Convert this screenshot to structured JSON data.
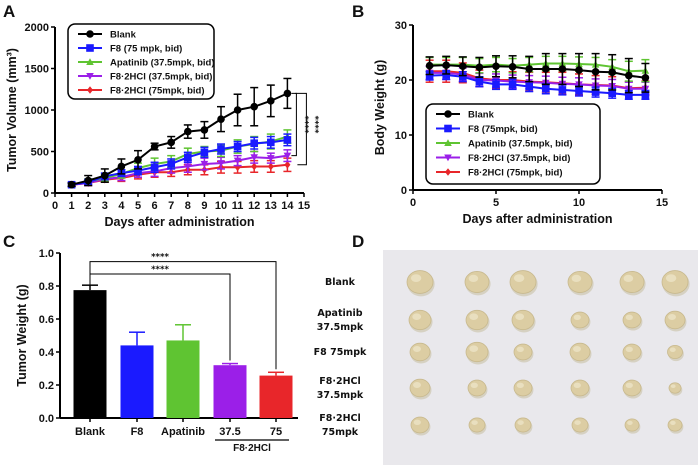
{
  "panels": {
    "a": "A",
    "b": "B",
    "c": "C",
    "d": "D"
  },
  "colors": {
    "blank": "#000000",
    "f8": "#1a1aff",
    "apatinib": "#5fc432",
    "f8_2hcl_37_5": "#9b1fe8",
    "f8_2hcl_75": "#e8262a"
  },
  "chart_data": [
    {
      "type": "line",
      "title": "A",
      "xlabel": "Days after administration",
      "ylabel": "Tumor Volume (mm³)",
      "xlim": [
        0,
        15
      ],
      "ylim": [
        0,
        2000
      ],
      "xticks": [
        0,
        1,
        2,
        3,
        4,
        5,
        6,
        7,
        8,
        9,
        10,
        11,
        12,
        13,
        14,
        15
      ],
      "yticks": [
        0,
        500,
        1000,
        1500,
        2000
      ],
      "x": [
        1,
        2,
        3,
        4,
        5,
        6,
        7,
        8,
        9,
        10,
        11,
        12,
        13,
        14
      ],
      "legend_position": "top-left",
      "significance": [
        "****",
        "****"
      ],
      "series": [
        {
          "name": "Blank",
          "key": "blank",
          "marker": "circle",
          "values": [
            100,
            150,
            210,
            320,
            400,
            560,
            610,
            740,
            760,
            890,
            1000,
            1040,
            1110,
            1200
          ],
          "errors": [
            20,
            60,
            80,
            90,
            110,
            40,
            70,
            80,
            100,
            150,
            190,
            230,
            190,
            180
          ]
        },
        {
          "name": "F8 (75 mpk, bid)",
          "key": "f8",
          "marker": "square",
          "values": [
            100,
            130,
            200,
            240,
            270,
            310,
            350,
            430,
            490,
            530,
            560,
            600,
            610,
            640
          ],
          "errors": [
            20,
            30,
            40,
            40,
            50,
            60,
            60,
            60,
            60,
            60,
            60,
            70,
            70,
            70
          ]
        },
        {
          "name": "Apatinib (37.5mpk, bid)",
          "key": "apatinib",
          "marker": "triangle-up",
          "values": [
            100,
            140,
            180,
            230,
            300,
            350,
            380,
            470,
            500,
            510,
            560,
            590,
            620,
            680
          ],
          "errors": [
            20,
            30,
            40,
            50,
            60,
            70,
            70,
            70,
            60,
            70,
            80,
            90,
            90,
            80
          ]
        },
        {
          "name": "F8·2HCl (37.5mpk, bid)",
          "key": "f8_2hcl_37_5",
          "marker": "triangle-down",
          "values": [
            100,
            120,
            170,
            190,
            240,
            260,
            300,
            320,
            350,
            360,
            390,
            430,
            420,
            450
          ],
          "errors": [
            20,
            30,
            30,
            40,
            50,
            60,
            60,
            70,
            70,
            70,
            60,
            70,
            60,
            70
          ]
        },
        {
          "name": "F8·2HCl (75mpk, bid)",
          "key": "f8_2hcl_75",
          "marker": "diamond",
          "values": [
            100,
            120,
            160,
            180,
            220,
            250,
            250,
            280,
            280,
            310,
            310,
            320,
            320,
            340
          ],
          "errors": [
            20,
            30,
            30,
            40,
            50,
            60,
            50,
            60,
            60,
            70,
            70,
            70,
            70,
            80
          ]
        }
      ]
    },
    {
      "type": "line",
      "title": "B",
      "xlabel": "Days after administration",
      "ylabel": "Body Weight (g)",
      "xlim": [
        0,
        15
      ],
      "ylim": [
        0,
        30
      ],
      "xticks": [
        0,
        5,
        10,
        15
      ],
      "yticks": [
        0,
        10,
        20,
        30
      ],
      "x": [
        1,
        2,
        3,
        4,
        5,
        6,
        7,
        8,
        9,
        10,
        11,
        12,
        13,
        14
      ],
      "legend_position": "bottom-left",
      "series": [
        {
          "name": "Blank",
          "key": "blank",
          "marker": "circle",
          "values": [
            22.6,
            22.7,
            22.5,
            22.3,
            22.5,
            22.4,
            22.0,
            22.0,
            22.0,
            21.8,
            21.5,
            21.4,
            20.8,
            20.4
          ],
          "errors": [
            1.6,
            1.6,
            1.7,
            1.8,
            1.9,
            2.0,
            2.3,
            2.8,
            2.8,
            3.0,
            3.3,
            3.2,
            3.1,
            2.6
          ]
        },
        {
          "name": "F8 (75mpk, bid)",
          "key": "f8",
          "marker": "square",
          "values": [
            20.8,
            20.9,
            20.6,
            19.7,
            19.2,
            19.2,
            18.8,
            18.4,
            18.2,
            18.0,
            17.8,
            17.6,
            17.3,
            17.3
          ],
          "errors": [
            0.8,
            0.8,
            0.9,
            0.9,
            0.9,
            0.9,
            0.9,
            0.9,
            0.9,
            0.9,
            0.9,
            0.9,
            0.8,
            0.8
          ]
        },
        {
          "name": "Apatinib (37.5mpk, bid)",
          "key": "apatinib",
          "marker": "triangle-up",
          "values": [
            22.8,
            22.8,
            22.8,
            22.6,
            22.8,
            22.6,
            22.8,
            23.0,
            23.0,
            22.9,
            22.8,
            22.4,
            21.6,
            21.7
          ],
          "errors": [
            1.3,
            1.3,
            1.3,
            1.3,
            1.3,
            1.3,
            1.3,
            1.3,
            1.3,
            1.3,
            1.3,
            1.3,
            1.8,
            2.0
          ]
        },
        {
          "name": "F8·2HCl (37.5mpk, bid)",
          "key": "f8_2hcl_37_5",
          "marker": "triangle-down",
          "values": [
            21.3,
            21.3,
            21.0,
            20.0,
            19.9,
            19.7,
            19.6,
            19.5,
            19.3,
            19.2,
            19.0,
            18.9,
            18.4,
            18.4
          ],
          "errors": [
            1.2,
            1.2,
            1.2,
            1.2,
            1.2,
            1.2,
            1.2,
            1.2,
            1.2,
            1.2,
            1.2,
            1.2,
            1.2,
            1.2
          ]
        },
        {
          "name": "F8·2HCl (75mpk, bid)",
          "key": "f8_2hcl_75",
          "marker": "diamond",
          "values": [
            21.6,
            21.6,
            21.3,
            20.3,
            20.0,
            20.0,
            19.7,
            19.6,
            19.4,
            19.2,
            19.1,
            19.0,
            18.5,
            18.6
          ],
          "errors": [
            2.0,
            2.0,
            1.8,
            1.5,
            1.5,
            1.5,
            1.7,
            1.8,
            2.0,
            1.9,
            1.7,
            1.6,
            1.2,
            1.2
          ]
        }
      ]
    },
    {
      "type": "bar",
      "title": "C",
      "xlabel": "",
      "ylabel": "Tumor Weight (g)",
      "ylim": [
        0,
        1.0
      ],
      "yticks": [
        "0.0",
        "0.2",
        "0.4",
        "0.6",
        "0.8",
        "1.0"
      ],
      "categories": [
        "Blank",
        "F8",
        "Apatinib",
        "37.5",
        "75"
      ],
      "group_label": "F8·2HCl",
      "series": [
        {
          "name": "Tumor Weight",
          "keys": [
            "blank",
            "f8",
            "apatinib",
            "f8_2hcl_37_5",
            "f8_2hcl_75"
          ],
          "values": [
            0.775,
            0.44,
            0.47,
            0.32,
            0.257
          ],
          "errors": [
            0.03,
            0.08,
            0.095,
            0.01,
            0.02
          ]
        }
      ],
      "significance": [
        {
          "from": "Blank",
          "to": "37.5",
          "label": "****"
        },
        {
          "from": "Blank",
          "to": "75",
          "label": "****"
        }
      ]
    }
  ],
  "photo": {
    "row_labels": [
      [
        "Blank"
      ],
      [
        "Apatinib",
        "37.5mpk"
      ],
      [
        "F8 75mpk"
      ],
      [
        "F8·2HCl",
        "37.5mpk"
      ],
      [
        "F8·2HCl",
        "75mpk"
      ]
    ]
  }
}
